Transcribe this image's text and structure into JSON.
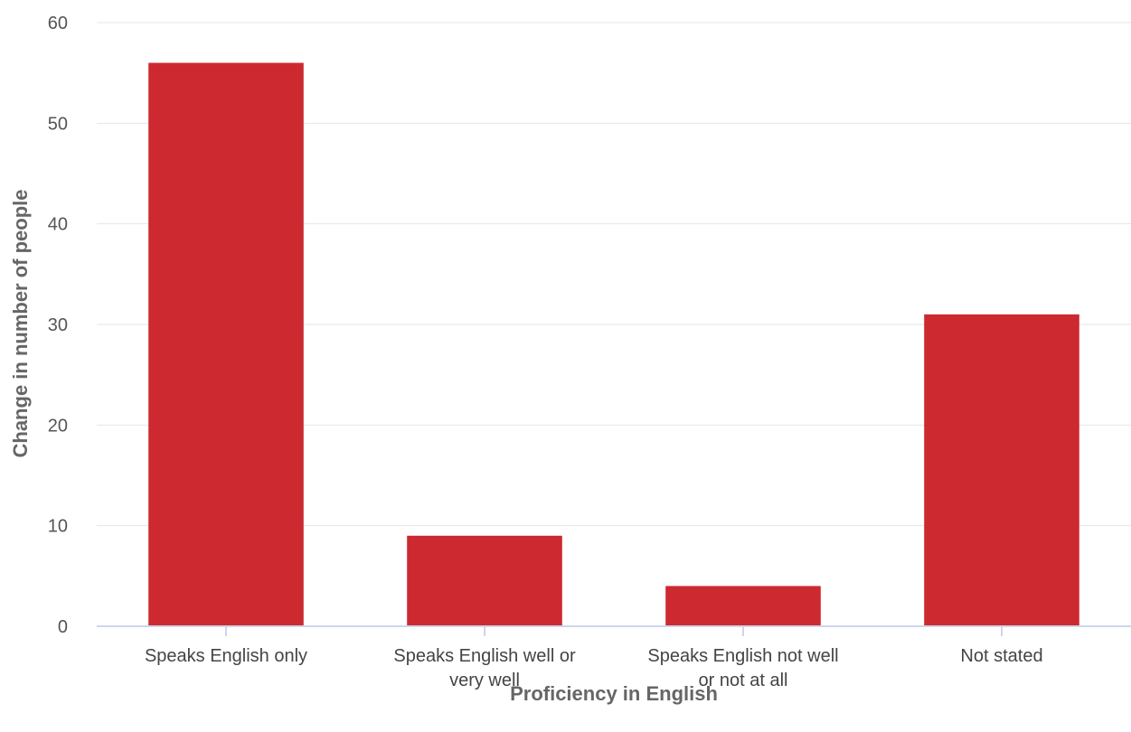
{
  "chart_data": {
    "type": "bar",
    "title": "",
    "xlabel": "Proficiency in English",
    "ylabel": "Change in number of people",
    "categories": [
      [
        "Speaks English only"
      ],
      [
        "Speaks English well or",
        "very well"
      ],
      [
        "Speaks English not well",
        "or not at all"
      ],
      [
        "Not stated"
      ]
    ],
    "values": [
      56,
      9,
      4,
      31
    ],
    "ylim": [
      0,
      60
    ],
    "yticks": [
      0,
      10,
      20,
      30,
      40,
      50,
      60
    ],
    "grid": true,
    "legend": "none",
    "bar_color": "#cc2a30"
  }
}
